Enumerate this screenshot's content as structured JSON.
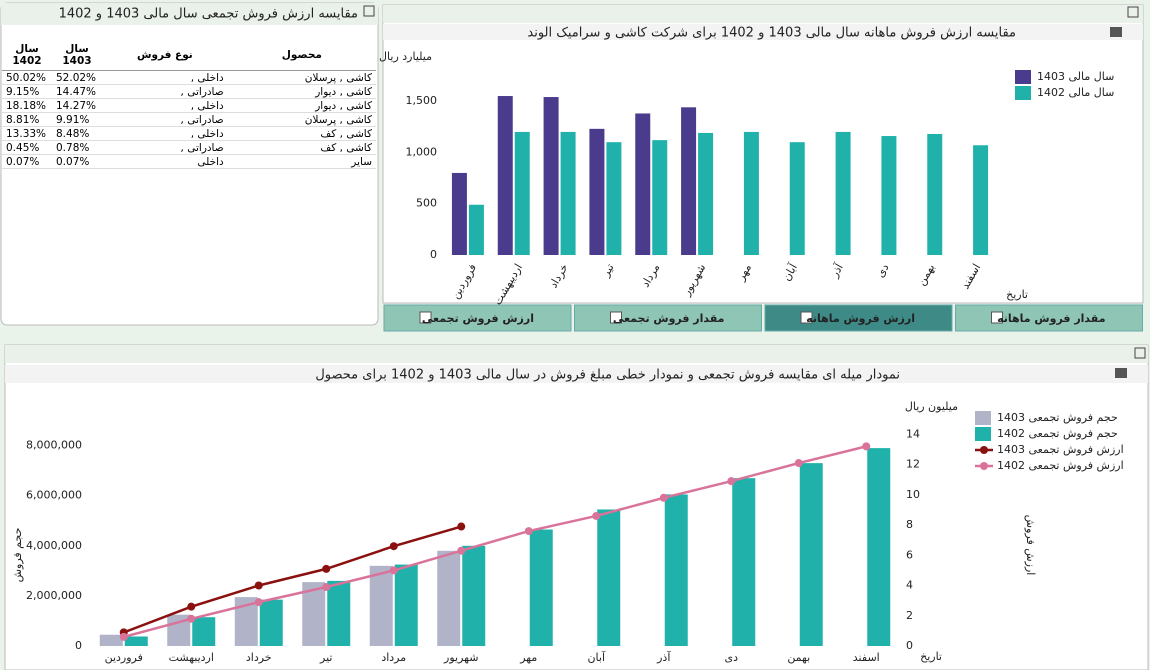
{
  "table": {
    "title": "مقایسه ارزش فروش تجمعی سال مالی 1403 و 1402",
    "headers": [
      "محصول",
      "نوع فروش",
      "سال 1403",
      "سال 1402"
    ],
    "rows": [
      [
        "کاشی , پرسلان",
        "داخلی ,",
        "52.02%",
        "50.02%"
      ],
      [
        "کاشی , دیوار",
        "صادراتی ,",
        "14.47%",
        "9.15%"
      ],
      [
        "کاشی , دیوار",
        "داخلی ,",
        "14.27%",
        "18.18%"
      ],
      [
        "کاشی , پرسلان",
        "صادراتی ,",
        "9.91%",
        "8.81%"
      ],
      [
        "کاشی , کف",
        "داخلی ,",
        "8.48%",
        "13.33%"
      ],
      [
        "کاشی , کف",
        "صادراتی ,",
        "0.78%",
        "0.45%"
      ],
      [
        "سایر",
        "داخلی",
        "0.07%",
        "0.07%"
      ]
    ]
  },
  "tabs": {
    "labels": [
      "ارزش فروش تجمعی",
      "مقدار فروش تجمعی",
      "ارزش فروش ماهانه",
      "مقدار فروش ماهانه"
    ],
    "active": 2
  },
  "chart_data": [
    {
      "type": "bar",
      "title": "مقایسه ارزش فروش ماهانه سال مالی 1403 و 1402 برای شرکت کاشی و سرامیک الوند",
      "y_label": "میلیارد ریال",
      "x_label": "تاریخ",
      "categories": [
        "فروردین",
        "اردیبهشت",
        "خرداد",
        "تیر",
        "مرداد",
        "شهریور",
        "مهر",
        "آبان",
        "آذر",
        "دی",
        "بهمن",
        "اسفند"
      ],
      "series": [
        {
          "name": "سال مالی 1403",
          "color": "#4a3b8c",
          "values": [
            800,
            1550,
            1540,
            1230,
            1380,
            1440,
            null,
            null,
            null,
            null,
            null,
            null
          ]
        },
        {
          "name": "سال مالی 1402",
          "color": "#20b2aa",
          "values": [
            490,
            1200,
            1200,
            1100,
            1120,
            1190,
            1200,
            1100,
            1200,
            1160,
            1180,
            1070
          ]
        }
      ],
      "ylim": [
        0,
        1950
      ],
      "yticks": [
        0,
        500,
        {
          "value": 1000,
          "label": "1,000"
        },
        {
          "value": 1500,
          "label": "1,500"
        }
      ],
      "legend": "top-right",
      "grid": false
    },
    {
      "type": "combo",
      "title": "نمودار میله ای مقایسه فروش تجمعی و نمودار خطی مبلغ فروش در سال مالی 1403 و 1402 برای محصول",
      "y_label": "حجم فروش",
      "y2_label": "ارزش فروش",
      "y2_unit": "میلیون ریال",
      "x_label": "تاریخ",
      "categories": [
        "فروردین",
        "اردیبهشت",
        "خرداد",
        "تیر",
        "مرداد",
        "شهریور",
        "مهر",
        "آبان",
        "آذر",
        "دی",
        "بهمن",
        "اسفند"
      ],
      "series": [
        {
          "name": "حجم فروش تجمعی 1403",
          "color": "#b1b3c8",
          "type": "bar",
          "values": [
            450000,
            1250000,
            1950000,
            2550000,
            3200000,
            3800000,
            null,
            null,
            null,
            null,
            null,
            null
          ]
        },
        {
          "name": "حجم فروش تجمعی 1402",
          "color": "#20b2aa",
          "type": "bar",
          "values": [
            380000,
            1150000,
            1850000,
            2600000,
            3250000,
            4000000,
            4650000,
            5450000,
            6050000,
            6700000,
            7300000,
            7900000
          ]
        },
        {
          "name": "ارزش فروش تجمعی 1403",
          "color": "#8b1010",
          "type": "line",
          "axis": "y2",
          "values": [
            0.9,
            2.6,
            4.0,
            5.1,
            6.6,
            7.9,
            null,
            null,
            null,
            null,
            null,
            null
          ]
        },
        {
          "name": "ارزش فروش تجمعی 1402",
          "color": "#d9739a",
          "type": "line",
          "axis": "y2",
          "values": [
            0.6,
            1.8,
            2.9,
            3.9,
            5.0,
            6.3,
            7.6,
            8.6,
            9.8,
            10.9,
            12.1,
            13.2
          ]
        }
      ],
      "ylim": [
        0,
        9900000
      ],
      "yticks": [
        0,
        {
          "value": 2000000,
          "label": "2,000,000"
        },
        {
          "value": 4000000,
          "label": "4,000,000"
        },
        {
          "value": 6000000,
          "label": "6,000,000"
        },
        {
          "value": 8000000,
          "label": "8,000,000"
        }
      ],
      "y2lim": [
        0,
        16.4
      ],
      "y2ticks": [
        0,
        2,
        4,
        6,
        8,
        10,
        12,
        14
      ],
      "legend": "right",
      "grid": false
    }
  ]
}
